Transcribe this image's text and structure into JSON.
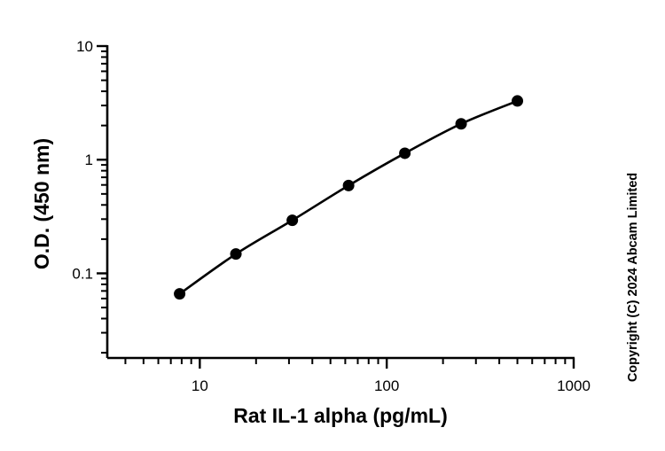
{
  "chart_data": {
    "type": "scatter",
    "x_scale": "log",
    "y_scale": "log",
    "xlim": [
      3.2,
      1000
    ],
    "ylim": [
      0.018,
      10
    ],
    "x_ticks": [
      {
        "value": 10,
        "label": "10"
      },
      {
        "value": 100,
        "label": "100"
      },
      {
        "value": 1000,
        "label": "1000"
      }
    ],
    "y_ticks": [
      {
        "value": 10,
        "label": "10"
      },
      {
        "value": 1,
        "label": "1"
      },
      {
        "value": 0.1,
        "label": "0.1"
      }
    ],
    "xlabel": "Rat IL-1 alpha (pg/mL)",
    "ylabel": "O.D. (450 nm)",
    "grid": false,
    "series": [
      {
        "x": [
          7.8,
          15.6,
          31.25,
          62.5,
          125,
          250,
          500
        ],
        "y": [
          0.066,
          0.148,
          0.293,
          0.593,
          1.14,
          2.07,
          3.29
        ],
        "fit_curve": true,
        "color": "#000000"
      }
    ],
    "annotations": [
      "Copyright (C) 2024 Abcam Limited"
    ]
  }
}
